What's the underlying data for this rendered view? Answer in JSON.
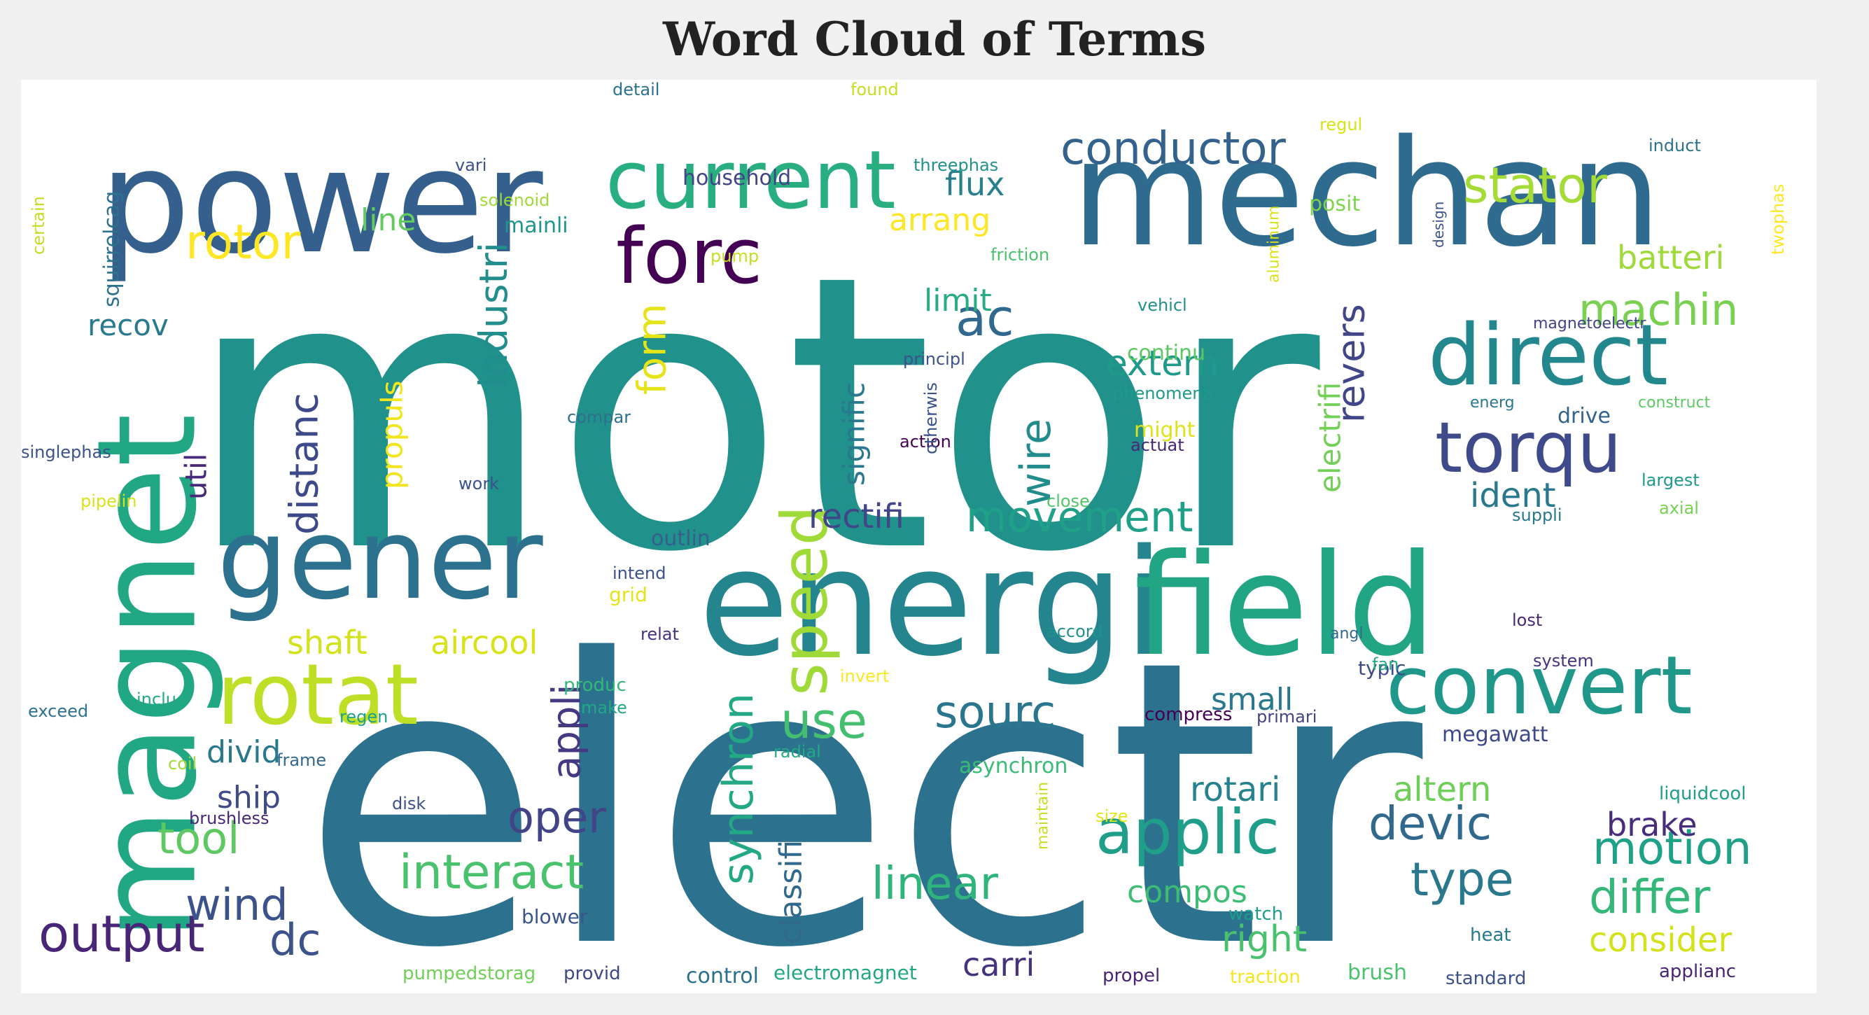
{
  "title": "Word Cloud of Terms",
  "chart_data": {
    "type": "wordcloud",
    "title": "Word Cloud of Terms",
    "words": [
      {
        "text": "motor",
        "weight": 100,
        "color": "#21918c",
        "vertical": false
      },
      {
        "text": "electr",
        "weight": 92,
        "color": "#2c728e",
        "vertical": false
      },
      {
        "text": "mechan",
        "weight": 58,
        "color": "#2f6b8e",
        "vertical": false
      },
      {
        "text": "energi",
        "weight": 54,
        "color": "#25858e",
        "vertical": false
      },
      {
        "text": "field",
        "weight": 50,
        "color": "#21a585",
        "vertical": false
      },
      {
        "text": "magnet",
        "weight": 52,
        "color": "#22a785",
        "vertical": true
      },
      {
        "text": "power",
        "weight": 46,
        "color": "#355f8d",
        "vertical": false
      },
      {
        "text": "gener",
        "weight": 40,
        "color": "#2c718e",
        "vertical": false
      },
      {
        "text": "current",
        "weight": 30,
        "color": "#29af7f",
        "vertical": false
      },
      {
        "text": "rotat",
        "weight": 30,
        "color": "#bddf26",
        "vertical": false
      },
      {
        "text": "direct",
        "weight": 28,
        "color": "#23888e",
        "vertical": false
      },
      {
        "text": "convert",
        "weight": 27,
        "color": "#1f988b",
        "vertical": false
      },
      {
        "text": "forc",
        "weight": 25,
        "color": "#440154",
        "vertical": false
      },
      {
        "text": "torqu",
        "weight": 22,
        "color": "#3e4a89",
        "vertical": false
      },
      {
        "text": "speed",
        "weight": 22,
        "color": "#a0da39",
        "vertical": true
      },
      {
        "text": "applic",
        "weight": 20,
        "color": "#1f9e89",
        "vertical": false
      },
      {
        "text": "output",
        "weight": 17,
        "color": "#482576",
        "vertical": false
      },
      {
        "text": "interact",
        "weight": 16,
        "color": "#4ac16d",
        "vertical": false
      },
      {
        "text": "stator",
        "weight": 16,
        "color": "#a5db36",
        "vertical": false
      },
      {
        "text": "rotor",
        "weight": 16,
        "color": "#fde725",
        "vertical": false
      },
      {
        "text": "conductor",
        "weight": 15,
        "color": "#33638d",
        "vertical": false
      },
      {
        "text": "motion",
        "weight": 15,
        "color": "#1fa187",
        "vertical": false
      },
      {
        "text": "devic",
        "weight": 15,
        "color": "#31688e",
        "vertical": false
      },
      {
        "text": "type",
        "weight": 15,
        "color": "#2a788e",
        "vertical": false
      },
      {
        "text": "differ",
        "weight": 15,
        "color": "#35b779",
        "vertical": false
      },
      {
        "text": "linear",
        "weight": 15,
        "color": "#2fb47c",
        "vertical": false
      },
      {
        "text": "synchron",
        "weight": 14,
        "color": "#22a884",
        "vertical": true
      },
      {
        "text": "sourc",
        "weight": 14,
        "color": "#2a768e",
        "vertical": false
      },
      {
        "text": "use",
        "weight": 14,
        "color": "#44bf70",
        "vertical": false
      },
      {
        "text": "tool",
        "weight": 14,
        "color": "#5ec962",
        "vertical": false
      },
      {
        "text": "wind",
        "weight": 14,
        "color": "#3b528b",
        "vertical": false
      },
      {
        "text": "oper",
        "weight": 14,
        "color": "#414487",
        "vertical": false
      },
      {
        "text": "ac",
        "weight": 14,
        "color": "#31688e",
        "vertical": false
      },
      {
        "text": "dc",
        "weight": 14,
        "color": "#3b528b",
        "vertical": false
      },
      {
        "text": "machin",
        "weight": 14,
        "color": "#7ad151",
        "vertical": false
      },
      {
        "text": "movement",
        "weight": 14,
        "color": "#1fa088",
        "vertical": false
      },
      {
        "text": "distanc",
        "weight": 13,
        "color": "#3e4989",
        "vertical": true
      },
      {
        "text": "form",
        "weight": 13,
        "color": "#e5e419",
        "vertical": true
      },
      {
        "text": "industri",
        "weight": 13,
        "color": "#228d8d",
        "vertical": true
      },
      {
        "text": "revers",
        "weight": 13,
        "color": "#404688",
        "vertical": true
      },
      {
        "text": "wire",
        "weight": 13,
        "color": "#228c8d",
        "vertical": true
      },
      {
        "text": "appli",
        "weight": 13,
        "color": "#443983",
        "vertical": true
      },
      {
        "text": "consider",
        "weight": 12,
        "color": "#d2e21b",
        "vertical": false
      },
      {
        "text": "right",
        "weight": 12,
        "color": "#4ac16d",
        "vertical": false
      },
      {
        "text": "extern",
        "weight": 12,
        "color": "#1f9a8a",
        "vertical": false
      },
      {
        "text": "ident",
        "weight": 12,
        "color": "#2a788e",
        "vertical": false
      },
      {
        "text": "rectifi",
        "weight": 12,
        "color": "#404688",
        "vertical": false
      },
      {
        "text": "carri",
        "weight": 12,
        "color": "#46337f",
        "vertical": false
      },
      {
        "text": "rotari",
        "weight": 12,
        "color": "#26828e",
        "vertical": false
      },
      {
        "text": "altern",
        "weight": 12,
        "color": "#6ece58",
        "vertical": false
      },
      {
        "text": "brake",
        "weight": 12,
        "color": "#472d7b",
        "vertical": false
      },
      {
        "text": "compos",
        "weight": 11,
        "color": "#3dbc74",
        "vertical": false
      },
      {
        "text": "small",
        "weight": 11,
        "color": "#2a788e",
        "vertical": false
      },
      {
        "text": "batteri",
        "weight": 11,
        "color": "#9fda3a",
        "vertical": false
      },
      {
        "text": "ship",
        "weight": 11,
        "color": "#3e4a89",
        "vertical": false
      },
      {
        "text": "divid",
        "weight": 11,
        "color": "#2a788e",
        "vertical": false
      },
      {
        "text": "shaft",
        "weight": 11,
        "color": "#d2e21b",
        "vertical": false
      },
      {
        "text": "aircool",
        "weight": 11,
        "color": "#d8e219",
        "vertical": false
      },
      {
        "text": "arrang",
        "weight": 11,
        "color": "#fde725",
        "vertical": false
      },
      {
        "text": "flux",
        "weight": 11,
        "color": "#27808e",
        "vertical": false
      },
      {
        "text": "line",
        "weight": 11,
        "color": "#62cb5f",
        "vertical": false
      },
      {
        "text": "recov",
        "weight": 11,
        "color": "#297a8e",
        "vertical": false
      },
      {
        "text": "limit",
        "weight": 11,
        "color": "#27ad81",
        "vertical": false
      },
      {
        "text": "classifi",
        "weight": 11,
        "color": "#31688e",
        "vertical": true
      },
      {
        "text": "signific",
        "weight": 11,
        "color": "#2a788e",
        "vertical": true
      },
      {
        "text": "electrifi",
        "weight": 11,
        "color": "#73d056",
        "vertical": true
      },
      {
        "text": "propuls",
        "weight": 11,
        "color": "#f1e51d",
        "vertical": true
      },
      {
        "text": "util",
        "weight": 11,
        "color": "#482878",
        "vertical": true
      },
      {
        "text": "outlin",
        "weight": 9,
        "color": "#355f8d",
        "vertical": false
      },
      {
        "text": "asynchron",
        "weight": 9,
        "color": "#3bbb75",
        "vertical": false
      },
      {
        "text": "megawatt",
        "weight": 9,
        "color": "#3e4989",
        "vertical": false
      },
      {
        "text": "household",
        "weight": 8,
        "color": "#414487",
        "vertical": false
      },
      {
        "text": "mainli",
        "weight": 8,
        "color": "#1f958b",
        "vertical": false
      },
      {
        "text": "posit",
        "weight": 8,
        "color": "#7fd34e",
        "vertical": false
      },
      {
        "text": "continu",
        "weight": 8,
        "color": "#5cc863",
        "vertical": false
      },
      {
        "text": "might",
        "weight": 8,
        "color": "#dde318",
        "vertical": false
      },
      {
        "text": "drive",
        "weight": 8,
        "color": "#33628d",
        "vertical": false
      },
      {
        "text": "typic",
        "weight": 8,
        "color": "#3e4a89",
        "vertical": false
      },
      {
        "text": "blower",
        "weight": 8,
        "color": "#3a548c",
        "vertical": false
      },
      {
        "text": "brush",
        "weight": 8,
        "color": "#4ac16d",
        "vertical": false
      },
      {
        "text": "control",
        "weight": 8,
        "color": "#2d708e",
        "vertical": false
      },
      {
        "text": "electromagnet",
        "weight": 7,
        "color": "#22a785",
        "vertical": false
      },
      {
        "text": "pumpedstorag",
        "weight": 7,
        "color": "#70cf57",
        "vertical": false
      },
      {
        "text": "provid",
        "weight": 7,
        "color": "#3f4788",
        "vertical": false
      },
      {
        "text": "propel",
        "weight": 7,
        "color": "#482475",
        "vertical": false
      },
      {
        "text": "traction",
        "weight": 7,
        "color": "#f4e61e",
        "vertical": false
      },
      {
        "text": "standard",
        "weight": 7,
        "color": "#3b528b",
        "vertical": false
      },
      {
        "text": "applianc",
        "weight": 7,
        "color": "#482475",
        "vertical": false
      },
      {
        "text": "watch",
        "weight": 7,
        "color": "#1f9e89",
        "vertical": false
      },
      {
        "text": "heat",
        "weight": 7,
        "color": "#2a788e",
        "vertical": false
      },
      {
        "text": "liquidcool",
        "weight": 7,
        "color": "#1f9e89",
        "vertical": false
      },
      {
        "text": "grid",
        "weight": 7,
        "color": "#e5e419",
        "vertical": false
      },
      {
        "text": "intend",
        "weight": 7,
        "color": "#3b528b",
        "vertical": false
      },
      {
        "text": "relat",
        "weight": 7,
        "color": "#46337f",
        "vertical": false
      },
      {
        "text": "produc",
        "weight": 7,
        "color": "#35b779",
        "vertical": false
      },
      {
        "text": "make",
        "weight": 7,
        "color": "#22a884",
        "vertical": false
      },
      {
        "text": "includ",
        "weight": 7,
        "color": "#22a884",
        "vertical": false
      },
      {
        "text": "exceed",
        "weight": 7,
        "color": "#2c728e",
        "vertical": false
      },
      {
        "text": "regen",
        "weight": 7,
        "color": "#1fa187",
        "vertical": false
      },
      {
        "text": "coil",
        "weight": 7,
        "color": "#a0da39",
        "vertical": false
      },
      {
        "text": "frame",
        "weight": 7,
        "color": "#31688e",
        "vertical": false
      },
      {
        "text": "brushless",
        "weight": 7,
        "color": "#482878",
        "vertical": false
      },
      {
        "text": "disk",
        "weight": 7,
        "color": "#3b528b",
        "vertical": false
      },
      {
        "text": "radial",
        "weight": 7,
        "color": "#22a884",
        "vertical": false
      },
      {
        "text": "invert",
        "weight": 7,
        "color": "#fde725",
        "vertical": false
      },
      {
        "text": "compress",
        "weight": 7,
        "color": "#440154",
        "vertical": false
      },
      {
        "text": "primari",
        "weight": 7,
        "color": "#414487",
        "vertical": false
      },
      {
        "text": "size",
        "weight": 7,
        "color": "#e5e419",
        "vertical": false
      },
      {
        "text": "accord",
        "weight": 7,
        "color": "#21918c",
        "vertical": false
      },
      {
        "text": "angl",
        "weight": 7,
        "color": "#31688e",
        "vertical": false
      },
      {
        "text": "fan",
        "weight": 7,
        "color": "#22a884",
        "vertical": false
      },
      {
        "text": "system",
        "weight": 7,
        "color": "#46337f",
        "vertical": false
      },
      {
        "text": "lost",
        "weight": 7,
        "color": "#482878",
        "vertical": false
      },
      {
        "text": "suppli",
        "weight": 7,
        "color": "#2a788e",
        "vertical": false
      },
      {
        "text": "axial",
        "weight": 7,
        "color": "#75d054",
        "vertical": false
      },
      {
        "text": "largest",
        "weight": 7,
        "color": "#1f9a8a",
        "vertical": false
      },
      {
        "text": "close",
        "weight": 7,
        "color": "#52c569",
        "vertical": false
      },
      {
        "text": "work",
        "weight": 7,
        "color": "#3b528b",
        "vertical": false
      },
      {
        "text": "pipelin",
        "weight": 7,
        "color": "#d8e219",
        "vertical": false
      },
      {
        "text": "singlephas",
        "weight": 7,
        "color": "#3b528b",
        "vertical": false
      },
      {
        "text": "compar",
        "weight": 7,
        "color": "#2c718e",
        "vertical": false
      },
      {
        "text": "action",
        "weight": 7,
        "color": "#440154",
        "vertical": false
      },
      {
        "text": "actuat",
        "weight": 7,
        "color": "#482878",
        "vertical": false
      },
      {
        "text": "phenomena",
        "weight": 7,
        "color": "#1f9a8a",
        "vertical": false
      },
      {
        "text": "principl",
        "weight": 7,
        "color": "#3b528b",
        "vertical": false
      },
      {
        "text": "energ",
        "weight": 7,
        "color": "#2a788e",
        "vertical": false
      },
      {
        "text": "construct",
        "weight": 7,
        "color": "#5ec962",
        "vertical": false
      },
      {
        "text": "magnetoelectr",
        "weight": 7,
        "color": "#414487",
        "vertical": false
      },
      {
        "text": "vehicl",
        "weight": 7,
        "color": "#21918c",
        "vertical": false
      },
      {
        "text": "pump",
        "weight": 7,
        "color": "#c2df23",
        "vertical": false
      },
      {
        "text": "friction",
        "weight": 7,
        "color": "#4ac16d",
        "vertical": false
      },
      {
        "text": "solenoid",
        "weight": 7,
        "color": "#a0da39",
        "vertical": false
      },
      {
        "text": "vari",
        "weight": 7,
        "color": "#3b528b",
        "vertical": false
      },
      {
        "text": "threephas",
        "weight": 7,
        "color": "#21918c",
        "vertical": false
      },
      {
        "text": "detail",
        "weight": 7,
        "color": "#2c728e",
        "vertical": false
      },
      {
        "text": "found",
        "weight": 7,
        "color": "#c2df23",
        "vertical": false
      },
      {
        "text": "regul",
        "weight": 7,
        "color": "#d8e219",
        "vertical": false
      },
      {
        "text": "induct",
        "weight": 7,
        "color": "#2c728e",
        "vertical": false
      },
      {
        "text": "squirrelcag",
        "weight": 7,
        "color": "#2c728e",
        "vertical": true
      },
      {
        "text": "certain",
        "weight": 7,
        "color": "#c2df23",
        "vertical": true
      },
      {
        "text": "aluminum",
        "weight": 7,
        "color": "#d8e219",
        "vertical": true
      },
      {
        "text": "design",
        "weight": 7,
        "color": "#3b528b",
        "vertical": true
      },
      {
        "text": "twophas",
        "weight": 7,
        "color": "#fde725",
        "vertical": true
      },
      {
        "text": "otherwis",
        "weight": 7,
        "color": "#3b528b",
        "vertical": true
      },
      {
        "text": "maintain",
        "weight": 7,
        "color": "#c2df23",
        "vertical": true
      }
    ]
  }
}
